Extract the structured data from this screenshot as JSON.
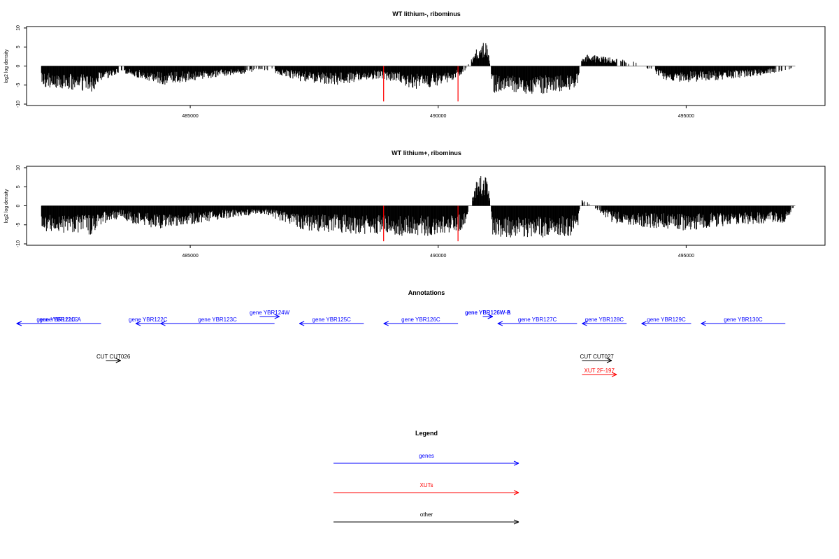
{
  "chart_data": [
    {
      "type": "bar",
      "title": "WT lithium-, ribominus",
      "ylabel": "log2 log density",
      "xlim": [
        481700,
        497800
      ],
      "ylim": [
        -10,
        10
      ],
      "yticks": [
        10,
        5,
        0,
        -5,
        -10
      ],
      "xticks": [
        485000,
        490000,
        495000
      ],
      "grid": false,
      "baseline": 0,
      "density_profile": {
        "x": [
          481700,
          482000,
          483000,
          483200,
          483600,
          484000,
          484500,
          486000,
          486500,
          487300,
          488000,
          488800,
          489100,
          489500,
          490000,
          490500,
          490800,
          491000,
          491100,
          491300,
          492000,
          492800,
          492900,
          493500,
          494000,
          494600,
          495000,
          496000,
          497000,
          497200
        ],
        "y": [
          0,
          -5,
          -6.5,
          -4,
          -1.5,
          -3,
          -4.5,
          -2,
          -1,
          -4,
          -4.5,
          -3,
          -4,
          -5.5,
          -5,
          -2,
          5,
          6,
          -6.5,
          -6,
          -7,
          -5.5,
          3,
          2,
          1,
          -3.5,
          -4,
          -3,
          -1.5,
          0
        ]
      },
      "red_markers": [
        488900,
        490400
      ]
    },
    {
      "type": "bar",
      "title": "WT lithium+, ribominus",
      "ylabel": "log2 log density",
      "xlim": [
        481700,
        497800
      ],
      "ylim": [
        -10,
        10
      ],
      "yticks": [
        10,
        5,
        0,
        -5,
        -10
      ],
      "xticks": [
        485000,
        490000,
        495000
      ],
      "grid": false,
      "baseline": 0,
      "density_profile": {
        "x": [
          481700,
          482000,
          483000,
          483200,
          483600,
          484000,
          484500,
          486000,
          486500,
          487300,
          488000,
          488800,
          489100,
          489500,
          490000,
          490500,
          490800,
          491000,
          491100,
          491300,
          492000,
          492800,
          492900,
          493500,
          494000,
          494600,
          495000,
          496000,
          497000,
          497200
        ],
        "y": [
          0,
          -6,
          -7,
          -4.5,
          -3,
          -5,
          -5.5,
          -2.5,
          -2,
          -6,
          -6.5,
          -7,
          -7,
          -7.5,
          -7,
          -6,
          7,
          8,
          -7,
          -7.5,
          -8,
          -7,
          2,
          -4,
          -5,
          -5.5,
          -6,
          -4.5,
          -4,
          0
        ]
      },
      "red_markers": [
        488900,
        490400
      ]
    }
  ],
  "annotations": {
    "title": "Annotations",
    "genes": [
      {
        "label": "gene YBR121C-A",
        "start": 483200,
        "end": 481500,
        "strand": "-",
        "row": 0
      },
      {
        "label": "gene YBR121C",
        "start": 483200,
        "end": 481500,
        "strand": "-",
        "row": 0
      },
      {
        "label": "gene YBR122C",
        "start": 484400,
        "end": 483900,
        "strand": "-",
        "row": 0
      },
      {
        "label": "gene YBR123C",
        "start": 486700,
        "end": 484400,
        "strand": "-",
        "row": 0
      },
      {
        "label": "gene YBR124W",
        "start": 486400,
        "end": 486800,
        "strand": "+",
        "row": 1
      },
      {
        "label": "gene YBR125C",
        "start": 488500,
        "end": 487200,
        "strand": "-",
        "row": 0
      },
      {
        "label": "gene YBR126C",
        "start": 490400,
        "end": 488900,
        "strand": "-",
        "row": 0
      },
      {
        "label": "gene YBR126W-A",
        "start": 490900,
        "end": 491100,
        "strand": "+",
        "row": 1
      },
      {
        "label": "gene YBR126W-B",
        "start": 490900,
        "end": 491100,
        "strand": "+",
        "row": 1
      },
      {
        "label": "gene YBR127C",
        "start": 492800,
        "end": 491200,
        "strand": "-",
        "row": 0
      },
      {
        "label": "gene YBR128C",
        "start": 493800,
        "end": 492900,
        "strand": "-",
        "row": 0
      },
      {
        "label": "gene YBR129C",
        "start": 495100,
        "end": 494100,
        "strand": "-",
        "row": 0
      },
      {
        "label": "gene YBR130C",
        "start": 497000,
        "end": 495300,
        "strand": "-",
        "row": 0
      }
    ],
    "other": [
      {
        "label": "CUT CUT026",
        "start": 483300,
        "end": 483600,
        "strand": "+",
        "row": 2
      },
      {
        "label": "CUT CUT027",
        "start": 492900,
        "end": 493500,
        "strand": "+",
        "row": 2
      }
    ],
    "xuts": [
      {
        "label": "XUT 2F-197",
        "start": 492900,
        "end": 493600,
        "strand": "+",
        "row": 3
      }
    ]
  },
  "legend": {
    "title": "Legend",
    "entries": [
      {
        "label": "genes",
        "color": "#0000ff"
      },
      {
        "label": "XUTs",
        "color": "#ff0000"
      },
      {
        "label": "other",
        "color": "#000000"
      }
    ]
  },
  "colors": {
    "signal": "#000000",
    "marker": "#ff0000",
    "gene": "#0000ff",
    "xut": "#ff0000",
    "other": "#000000"
  }
}
